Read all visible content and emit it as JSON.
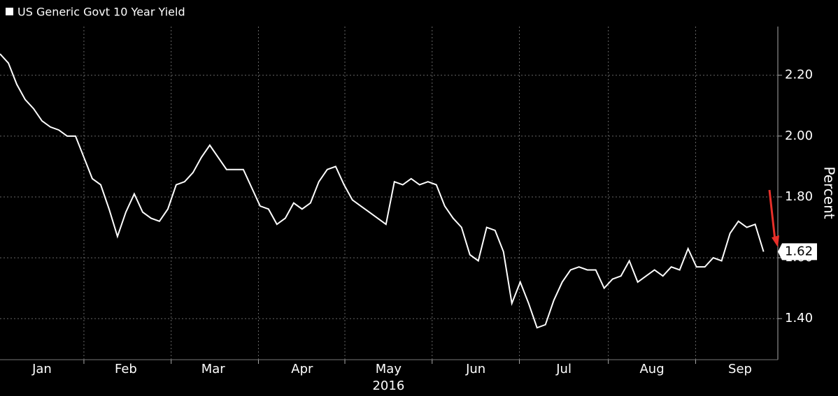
{
  "chart_data": {
    "type": "line",
    "title": "US Generic Govt 10 Year Yield",
    "y_label": "Percent",
    "year_label": "2016",
    "series": [
      {
        "name": "US Generic Govt 10 Year Yield",
        "color": "#ffffff",
        "values": [
          2.27,
          2.24,
          2.17,
          2.12,
          2.09,
          2.05,
          2.03,
          2.02,
          2.0,
          2.0,
          1.93,
          1.86,
          1.84,
          1.76,
          1.67,
          1.75,
          1.81,
          1.75,
          1.73,
          1.72,
          1.76,
          1.84,
          1.85,
          1.88,
          1.93,
          1.97,
          1.93,
          1.89,
          1.89,
          1.89,
          1.83,
          1.77,
          1.76,
          1.71,
          1.73,
          1.78,
          1.76,
          1.78,
          1.85,
          1.89,
          1.9,
          1.84,
          1.79,
          1.77,
          1.75,
          1.73,
          1.71,
          1.85,
          1.84,
          1.86,
          1.84,
          1.85,
          1.84,
          1.77,
          1.73,
          1.7,
          1.61,
          1.59,
          1.7,
          1.69,
          1.62,
          1.45,
          1.52,
          1.45,
          1.37,
          1.38,
          1.46,
          1.52,
          1.56,
          1.57,
          1.56,
          1.56,
          1.5,
          1.53,
          1.54,
          1.59,
          1.52,
          1.54,
          1.56,
          1.54,
          1.57,
          1.56,
          1.63,
          1.57,
          1.57,
          1.6,
          1.59,
          1.68,
          1.72,
          1.7,
          1.71,
          1.62
        ]
      }
    ],
    "xlim": [
      0,
      92.7
    ],
    "xticks": [
      {
        "value": 5,
        "label": "Jan"
      },
      {
        "value": 15,
        "label": "Feb"
      },
      {
        "value": 25.4,
        "label": "Mar"
      },
      {
        "value": 36,
        "label": "Apr"
      },
      {
        "value": 46.3,
        "label": "May"
      },
      {
        "value": 56.7,
        "label": "Jun"
      },
      {
        "value": 67.2,
        "label": "Jul"
      },
      {
        "value": 77.7,
        "label": "Aug"
      },
      {
        "value": 88.2,
        "label": "Sep"
      }
    ],
    "xgrid": [
      10,
      20.4,
      30.8,
      41.1,
      51.5,
      61.9,
      72.5,
      82.9
    ],
    "ylim": [
      1.265,
      2.36
    ],
    "yticks": [
      {
        "value": 1.4,
        "label": "1.40"
      },
      {
        "value": 1.6,
        "label": "1.60"
      },
      {
        "value": 1.8,
        "label": "1.80"
      },
      {
        "value": 2.0,
        "label": "2.00"
      },
      {
        "value": 2.2,
        "label": "2.20"
      }
    ],
    "grid": true
  }
}
